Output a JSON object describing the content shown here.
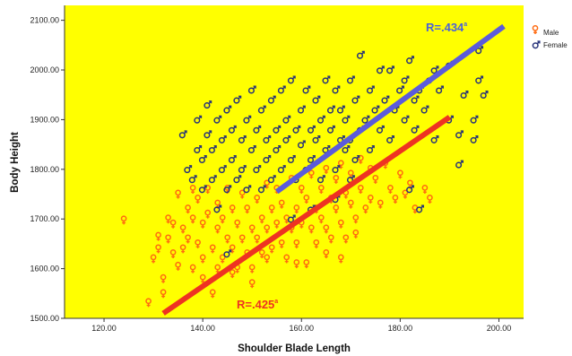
{
  "chart_data": {
    "type": "scatter",
    "xlabel": "Shoulder Blade Length",
    "ylabel": "Body Height",
    "xlim": [
      112,
      205
    ],
    "ylim": [
      1500,
      2130
    ],
    "x_ticks": [
      120,
      140,
      160,
      180,
      200
    ],
    "y_ticks": [
      1500,
      1600,
      1700,
      1800,
      1900,
      2000,
      2100
    ],
    "x_tick_labels": [
      "120.00",
      "140.00",
      "160.00",
      "180.00",
      "200.00"
    ],
    "y_tick_labels": [
      "1500.00",
      "1600.00",
      "1700.00",
      "1800.00",
      "1900.00",
      "2000.00",
      "2100.00"
    ],
    "background_color": "#ffff00",
    "legend_placement": "top-right, outside plot",
    "series": [
      {
        "name": "Male",
        "color": "#ff6a10",
        "marker": "female-symbol-icon",
        "points": [
          [
            124,
            1698
          ],
          [
            129,
            1532
          ],
          [
            130,
            1620
          ],
          [
            131,
            1665
          ],
          [
            131,
            1640
          ],
          [
            132,
            1580
          ],
          [
            132,
            1550
          ],
          [
            133,
            1700
          ],
          [
            133,
            1660
          ],
          [
            134,
            1630
          ],
          [
            134,
            1690
          ],
          [
            135,
            1750
          ],
          [
            135,
            1605
          ],
          [
            136,
            1680
          ],
          [
            136,
            1640
          ],
          [
            137,
            1720
          ],
          [
            137,
            1660
          ],
          [
            138,
            1600
          ],
          [
            138,
            1700
          ],
          [
            139,
            1740
          ],
          [
            139,
            1650
          ],
          [
            140,
            1620
          ],
          [
            140,
            1690
          ],
          [
            141,
            1760
          ],
          [
            141,
            1710
          ],
          [
            142,
            1640
          ],
          [
            142,
            1550
          ],
          [
            143,
            1680
          ],
          [
            143,
            1730
          ],
          [
            144,
            1620
          ],
          [
            144,
            1700
          ],
          [
            145,
            1660
          ],
          [
            145,
            1760
          ],
          [
            146,
            1640
          ],
          [
            146,
            1720
          ],
          [
            147,
            1600
          ],
          [
            147,
            1690
          ],
          [
            148,
            1750
          ],
          [
            148,
            1660
          ],
          [
            149,
            1630
          ],
          [
            149,
            1720
          ],
          [
            150,
            1680
          ],
          [
            150,
            1600
          ],
          [
            151,
            1740
          ],
          [
            151,
            1660
          ],
          [
            152,
            1700
          ],
          [
            152,
            1630
          ],
          [
            153,
            1770
          ],
          [
            153,
            1680
          ],
          [
            154,
            1720
          ],
          [
            154,
            1640
          ],
          [
            155,
            1760
          ],
          [
            155,
            1690
          ],
          [
            156,
            1650
          ],
          [
            156,
            1730
          ],
          [
            157,
            1700
          ],
          [
            157,
            1620
          ],
          [
            158,
            1780
          ],
          [
            158,
            1680
          ],
          [
            159,
            1720
          ],
          [
            159,
            1650
          ],
          [
            160,
            1760
          ],
          [
            160,
            1690
          ],
          [
            161,
            1610
          ],
          [
            161,
            1740
          ],
          [
            162,
            1680
          ],
          [
            162,
            1790
          ],
          [
            163,
            1720
          ],
          [
            163,
            1650
          ],
          [
            164,
            1760
          ],
          [
            164,
            1700
          ],
          [
            165,
            1800
          ],
          [
            165,
            1680
          ],
          [
            166,
            1740
          ],
          [
            166,
            1660
          ],
          [
            167,
            1780
          ],
          [
            167,
            1720
          ],
          [
            168,
            1690
          ],
          [
            168,
            1810
          ],
          [
            169,
            1750
          ],
          [
            169,
            1660
          ],
          [
            170,
            1790
          ],
          [
            170,
            1730
          ],
          [
            171,
            1700
          ],
          [
            172,
            1820
          ],
          [
            172,
            1760
          ],
          [
            173,
            1720
          ],
          [
            174,
            1800
          ],
          [
            174,
            1740
          ],
          [
            175,
            1780
          ],
          [
            176,
            1730
          ],
          [
            177,
            1810
          ],
          [
            178,
            1760
          ],
          [
            179,
            1740
          ],
          [
            180,
            1790
          ],
          [
            181,
            1750
          ],
          [
            182,
            1770
          ],
          [
            183,
            1720
          ],
          [
            185,
            1760
          ],
          [
            186,
            1740
          ],
          [
            140,
            1580
          ],
          [
            143,
            1600
          ],
          [
            146,
            1590
          ],
          [
            150,
            1570
          ],
          [
            138,
            1760
          ],
          [
            153,
            1620
          ],
          [
            159,
            1610
          ],
          [
            165,
            1630
          ],
          [
            168,
            1620
          ],
          [
            171,
            1670
          ]
        ]
      },
      {
        "name": "Female",
        "color": "#26327a",
        "marker": "male-symbol-icon",
        "points": [
          [
            136,
            1870
          ],
          [
            137,
            1800
          ],
          [
            138,
            1780
          ],
          [
            139,
            1840
          ],
          [
            139,
            1900
          ],
          [
            140,
            1760
          ],
          [
            140,
            1820
          ],
          [
            141,
            1870
          ],
          [
            141,
            1930
          ],
          [
            142,
            1780
          ],
          [
            142,
            1840
          ],
          [
            143,
            1900
          ],
          [
            143,
            1720
          ],
          [
            144,
            1860
          ],
          [
            144,
            1800
          ],
          [
            145,
            1920
          ],
          [
            145,
            1760
          ],
          [
            146,
            1880
          ],
          [
            146,
            1820
          ],
          [
            147,
            1780
          ],
          [
            147,
            1940
          ],
          [
            148,
            1860
          ],
          [
            148,
            1800
          ],
          [
            149,
            1900
          ],
          [
            149,
            1760
          ],
          [
            150,
            1840
          ],
          [
            150,
            1960
          ],
          [
            151,
            1800
          ],
          [
            151,
            1880
          ],
          [
            152,
            1920
          ],
          [
            152,
            1760
          ],
          [
            153,
            1860
          ],
          [
            153,
            1820
          ],
          [
            154,
            1940
          ],
          [
            154,
            1780
          ],
          [
            155,
            1880
          ],
          [
            155,
            1840
          ],
          [
            156,
            1960
          ],
          [
            156,
            1800
          ],
          [
            157,
            1900
          ],
          [
            157,
            1860
          ],
          [
            158,
            1820
          ],
          [
            158,
            1980
          ],
          [
            159,
            1880
          ],
          [
            159,
            1780
          ],
          [
            160,
            1920
          ],
          [
            160,
            1850
          ],
          [
            161,
            1800
          ],
          [
            161,
            1960
          ],
          [
            162,
            1880
          ],
          [
            162,
            1820
          ],
          [
            163,
            1940
          ],
          [
            163,
            1860
          ],
          [
            164,
            1900
          ],
          [
            164,
            1780
          ],
          [
            165,
            1980
          ],
          [
            165,
            1840
          ],
          [
            166,
            1920
          ],
          [
            166,
            1880
          ],
          [
            167,
            1800
          ],
          [
            167,
            1960
          ],
          [
            168,
            1860
          ],
          [
            168,
            1920
          ],
          [
            169,
            1840
          ],
          [
            169,
            1900
          ],
          [
            170,
            1980
          ],
          [
            170,
            1860
          ],
          [
            171,
            1820
          ],
          [
            171,
            1940
          ],
          [
            172,
            2030
          ],
          [
            172,
            1880
          ],
          [
            173,
            1900
          ],
          [
            174,
            1960
          ],
          [
            174,
            1840
          ],
          [
            175,
            1920
          ],
          [
            176,
            1880
          ],
          [
            176,
            2000
          ],
          [
            177,
            1940
          ],
          [
            178,
            1860
          ],
          [
            178,
            2000
          ],
          [
            179,
            1920
          ],
          [
            180,
            1960
          ],
          [
            181,
            1900
          ],
          [
            181,
            1980
          ],
          [
            182,
            2020
          ],
          [
            183,
            1880
          ],
          [
            183,
            1940
          ],
          [
            184,
            1960
          ],
          [
            185,
            1920
          ],
          [
            186,
            1980
          ],
          [
            187,
            1860
          ],
          [
            187,
            2000
          ],
          [
            188,
            1960
          ],
          [
            190,
            1900
          ],
          [
            190,
            2010
          ],
          [
            192,
            1870
          ],
          [
            192,
            1810
          ],
          [
            193,
            1950
          ],
          [
            195,
            1860
          ],
          [
            195,
            1900
          ],
          [
            196,
            1980
          ],
          [
            196,
            2040
          ],
          [
            197,
            1950
          ],
          [
            145,
            1630
          ],
          [
            158,
            1700
          ],
          [
            162,
            1720
          ],
          [
            167,
            1740
          ],
          [
            170,
            1780
          ],
          [
            184,
            1720
          ],
          [
            182,
            1760
          ]
        ]
      }
    ],
    "fit_lines": [
      {
        "series": "Female",
        "color": "#5b5bdb",
        "x": [
          155,
          201
        ],
        "y": [
          1755,
          2088
        ]
      },
      {
        "series": "Male",
        "color": "#ee3322",
        "x": [
          132,
          190
        ],
        "y": [
          1510,
          1905
        ]
      }
    ]
  },
  "annotations": {
    "female_r_main": "R=.434",
    "female_r_sup": "a",
    "male_r_main": "R=.425",
    "male_r_sup": "a"
  },
  "legend": [
    {
      "label": "Male",
      "icon": "female-symbol-icon",
      "color": "#ff6a10"
    },
    {
      "label": "Female",
      "icon": "male-symbol-icon",
      "color": "#26327a"
    }
  ]
}
